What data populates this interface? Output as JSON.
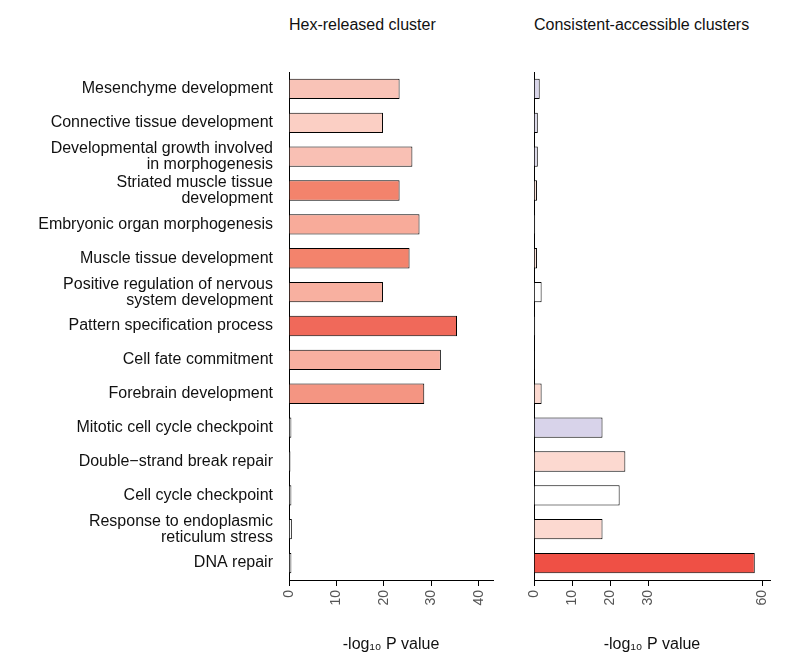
{
  "chart_data": [
    {
      "type": "bar",
      "orientation": "horizontal",
      "title": "Hex-released cluster",
      "x_label": "-log₁₀ P value",
      "categories": [
        "Mesenchyme development",
        "Connective tissue development",
        "Developmental growth involved in morphogenesis",
        "Striated muscle tissue development",
        "Embryonic organ morphogenesis",
        "Muscle tissue development",
        "Positive regulation of nervous system development",
        "Pattern specification process",
        "Cell fate commitment",
        "Forebrain development",
        "Mitotic cell cycle checkpoint",
        "Double−strand break repair",
        "Cell cycle checkpoint",
        "Response to endoplasmic reticulum stress",
        "DNA repair"
      ],
      "values": [
        23.3,
        19.8,
        26,
        23.3,
        27.5,
        25.4,
        19.8,
        35.4,
        32,
        28.5,
        0.5,
        0.3,
        0.5,
        0.6,
        0.5
      ],
      "colors": [
        "#f9c3b7",
        "#fbcfc4",
        "#f9c0b4",
        "#f3836c",
        "#f8ab9a",
        "#f3836c",
        "#f8b0a0",
        "#f0695a",
        "#f8b0a0",
        "#f49582",
        "#ffffff",
        "#ffffff",
        "#ffffff",
        "#ffffff",
        "#ffffff"
      ],
      "xlim": [
        0,
        43
      ],
      "xticks": [
        0,
        10,
        20,
        30,
        40
      ],
      "grid": false
    },
    {
      "type": "bar",
      "orientation": "horizontal",
      "title": "Consistent-accessible clusters",
      "x_label": "-log₁₀ P value",
      "categories": [
        "Mesenchyme development",
        "Connective tissue development",
        "Developmental growth involved in morphogenesis",
        "Striated muscle tissue development",
        "Embryonic organ morphogenesis",
        "Muscle tissue development",
        "Positive regulation of nervous system development",
        "Pattern specification process",
        "Cell fate commitment",
        "Forebrain development",
        "Mitotic cell cycle checkpoint",
        "Double−strand break repair",
        "Cell cycle checkpoint",
        "Response to endoplasmic reticulum stress",
        "DNA repair"
      ],
      "values": [
        1.5,
        1,
        1,
        0.8,
        0.3,
        0.8,
        2,
        0.3,
        0.2,
        2,
        18,
        24,
        22.5,
        18,
        58
      ],
      "colors": [
        "#d9d6ea",
        "#dedbec",
        "#dedbec",
        "#fde3da",
        "#ffffff",
        "#fde3da",
        "#ffffff",
        "#ffffff",
        "#ffffff",
        "#fcd9d0",
        "#d8d3ea",
        "#fcd9d0",
        "#ffffff",
        "#fcd9d0",
        "#ef5045"
      ],
      "xlim": [
        0,
        62
      ],
      "xticks": [
        0,
        10,
        20,
        30,
        60
      ],
      "grid": false,
      "tick_labels": "x"
    }
  ]
}
